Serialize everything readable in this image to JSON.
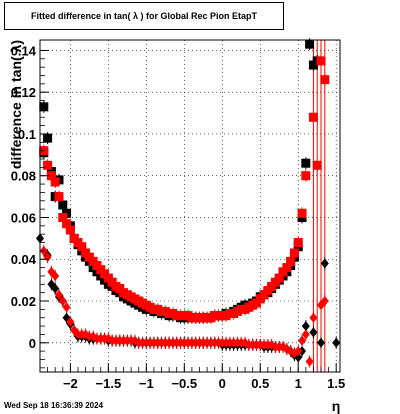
{
  "chart_data": {
    "type": "scatter",
    "title": "Fitted difference in tan( λ ) for Global Rec Pion EtapT",
    "xlabel": "η",
    "ylabel": "difference in tan( λ)",
    "xlim": [
      -2.4,
      1.55
    ],
    "ylim": [
      -0.014,
      0.145
    ],
    "grid": true,
    "x_ticks": [
      -2,
      -1.5,
      -1,
      -0.5,
      0,
      0.5,
      1,
      1.5
    ],
    "x_tick_labels": [
      "−2",
      "−1.5",
      "−1",
      "−0.5",
      "0",
      "0.5",
      "1",
      "1.5"
    ],
    "y_ticks": [
      0,
      0.02,
      0.04,
      0.06,
      0.08,
      0.1,
      0.12,
      0.14
    ],
    "y_tick_labels": [
      "0",
      "0.02",
      "0.04",
      "0.06",
      "0.08",
      "0.1",
      "0.12",
      "0.14"
    ],
    "series": [
      {
        "color": "#000000",
        "marker": "square",
        "points": [
          [
            -2.35,
            0.113
          ],
          [
            -2.35,
            0.091
          ],
          [
            -2.3,
            0.098
          ],
          [
            -2.25,
            0.082
          ],
          [
            -2.2,
            0.07
          ],
          [
            -2.15,
            0.078
          ],
          [
            -2.1,
            0.066
          ],
          [
            -2.05,
            0.062
          ],
          [
            -2.0,
            0.056
          ],
          [
            -1.95,
            0.05
          ],
          [
            -1.9,
            0.047
          ],
          [
            -1.85,
            0.044
          ],
          [
            -1.8,
            0.041
          ],
          [
            -1.75,
            0.039
          ],
          [
            -1.7,
            0.036
          ],
          [
            -1.65,
            0.034
          ],
          [
            -1.6,
            0.032
          ],
          [
            -1.55,
            0.03
          ],
          [
            -1.5,
            0.028
          ],
          [
            -1.45,
            0.027
          ],
          [
            -1.4,
            0.025
          ],
          [
            -1.35,
            0.024
          ],
          [
            -1.3,
            0.022
          ],
          [
            -1.25,
            0.021
          ],
          [
            -1.2,
            0.02
          ],
          [
            -1.15,
            0.019
          ],
          [
            -1.1,
            0.018
          ],
          [
            -1.05,
            0.017
          ],
          [
            -1.0,
            0.016
          ],
          [
            -0.95,
            0.016
          ],
          [
            -0.9,
            0.015
          ],
          [
            -0.85,
            0.015
          ],
          [
            -0.8,
            0.014
          ],
          [
            -0.75,
            0.014
          ],
          [
            -0.7,
            0.013
          ],
          [
            -0.65,
            0.013
          ],
          [
            -0.6,
            0.013
          ],
          [
            -0.55,
            0.012
          ],
          [
            -0.5,
            0.012
          ],
          [
            -0.45,
            0.012
          ],
          [
            -0.4,
            0.012
          ],
          [
            -0.35,
            0.012
          ],
          [
            -0.3,
            0.012
          ],
          [
            -0.25,
            0.012
          ],
          [
            -0.2,
            0.012
          ],
          [
            -0.15,
            0.012
          ],
          [
            -0.1,
            0.013
          ],
          [
            -0.05,
            0.013
          ],
          [
            0.0,
            0.013
          ],
          [
            0.05,
            0.014
          ],
          [
            0.1,
            0.014
          ],
          [
            0.15,
            0.015
          ],
          [
            0.2,
            0.016
          ],
          [
            0.25,
            0.017
          ],
          [
            0.3,
            0.018
          ],
          [
            0.35,
            0.018
          ],
          [
            0.4,
            0.019
          ],
          [
            0.45,
            0.02
          ],
          [
            0.5,
            0.022
          ],
          [
            0.55,
            0.023
          ],
          [
            0.6,
            0.024
          ],
          [
            0.65,
            0.026
          ],
          [
            0.7,
            0.028
          ],
          [
            0.75,
            0.03
          ],
          [
            0.8,
            0.032
          ],
          [
            0.85,
            0.034
          ],
          [
            0.9,
            0.037
          ],
          [
            0.95,
            0.041
          ],
          [
            1.0,
            0.046
          ],
          [
            1.05,
            0.06
          ],
          [
            1.1,
            0.086
          ],
          [
            1.15,
            0.143
          ],
          [
            1.2,
            0.133
          ],
          [
            1.25,
            0.135
          ]
        ]
      },
      {
        "color": "#000000",
        "marker": "diamond",
        "points": [
          [
            -2.4,
            0.05
          ],
          [
            -2.3,
            0.042
          ],
          [
            -2.25,
            0.028
          ],
          [
            -2.2,
            0.026
          ],
          [
            -2.15,
            0.022
          ],
          [
            -2.1,
            0.02
          ],
          [
            -2.05,
            0.012
          ],
          [
            -2.0,
            0.009
          ],
          [
            -1.95,
            0.006
          ],
          [
            -1.9,
            0.003
          ],
          [
            -1.85,
            0.003
          ],
          [
            -1.8,
            0.003
          ],
          [
            -1.75,
            0.002
          ],
          [
            -1.7,
            0.002
          ],
          [
            -1.65,
            0.002
          ],
          [
            -1.6,
            0.002
          ],
          [
            -1.55,
            0.002
          ],
          [
            -1.5,
            0.001
          ],
          [
            -1.45,
            0.001
          ],
          [
            -1.4,
            0.001
          ],
          [
            -1.35,
            0.001
          ],
          [
            -1.3,
            0.001
          ],
          [
            -1.25,
            0.001
          ],
          [
            -1.2,
            0.001
          ],
          [
            -1.15,
            0.0
          ],
          [
            -1.1,
            0.0
          ],
          [
            -1.05,
            0.0
          ],
          [
            -1.0,
            0.0
          ],
          [
            -0.95,
            0.0
          ],
          [
            -0.9,
            0.0
          ],
          [
            -0.85,
            0.0
          ],
          [
            -0.8,
            0.0
          ],
          [
            -0.75,
            0.0
          ],
          [
            -0.7,
            0.0
          ],
          [
            -0.65,
            0.0
          ],
          [
            -0.6,
            0.0
          ],
          [
            -0.55,
            0.0
          ],
          [
            -0.5,
            0.0
          ],
          [
            -0.45,
            0.0
          ],
          [
            -0.4,
            0.0
          ],
          [
            -0.35,
            0.0
          ],
          [
            -0.3,
            0.0
          ],
          [
            -0.25,
            0.0
          ],
          [
            -0.2,
            0.0
          ],
          [
            -0.15,
            0.0
          ],
          [
            -0.1,
            0.0
          ],
          [
            -0.05,
            0.0
          ],
          [
            0.0,
            -0.001
          ],
          [
            0.05,
            -0.001
          ],
          [
            0.1,
            -0.001
          ],
          [
            0.15,
            -0.001
          ],
          [
            0.2,
            -0.001
          ],
          [
            0.25,
            -0.001
          ],
          [
            0.3,
            -0.001
          ],
          [
            0.35,
            -0.001
          ],
          [
            0.4,
            -0.001
          ],
          [
            0.45,
            -0.001
          ],
          [
            0.5,
            -0.001
          ],
          [
            0.55,
            -0.002
          ],
          [
            0.6,
            -0.002
          ],
          [
            0.65,
            -0.002
          ],
          [
            0.7,
            -0.002
          ],
          [
            0.75,
            -0.002
          ],
          [
            0.8,
            -0.002
          ],
          [
            0.85,
            -0.003
          ],
          [
            0.9,
            -0.004
          ],
          [
            0.95,
            -0.006
          ],
          [
            1.0,
            -0.007
          ],
          [
            1.05,
            -0.004
          ],
          [
            1.1,
            0.008
          ],
          [
            1.2,
            0.005
          ],
          [
            1.3,
            0.0
          ],
          [
            1.35,
            0.038
          ],
          [
            1.5,
            0.0
          ]
        ]
      },
      {
        "color": "#ff0000",
        "marker": "square",
        "points": [
          [
            -2.35,
            0.092
          ],
          [
            -2.3,
            0.085
          ],
          [
            -2.25,
            0.08
          ],
          [
            -2.2,
            0.077
          ],
          [
            -2.15,
            0.07
          ],
          [
            -2.1,
            0.06
          ],
          [
            -2.05,
            0.057
          ],
          [
            -2.0,
            0.054
          ],
          [
            -1.95,
            0.05
          ],
          [
            -1.9,
            0.048
          ],
          [
            -1.85,
            0.046
          ],
          [
            -1.8,
            0.043
          ],
          [
            -1.75,
            0.041
          ],
          [
            -1.7,
            0.039
          ],
          [
            -1.65,
            0.037
          ],
          [
            -1.6,
            0.035
          ],
          [
            -1.55,
            0.033
          ],
          [
            -1.5,
            0.031
          ],
          [
            -1.45,
            0.029
          ],
          [
            -1.4,
            0.027
          ],
          [
            -1.35,
            0.026
          ],
          [
            -1.3,
            0.024
          ],
          [
            -1.25,
            0.023
          ],
          [
            -1.2,
            0.022
          ],
          [
            -1.15,
            0.021
          ],
          [
            -1.1,
            0.02
          ],
          [
            -1.05,
            0.019
          ],
          [
            -1.0,
            0.018
          ],
          [
            -0.95,
            0.017
          ],
          [
            -0.9,
            0.016
          ],
          [
            -0.85,
            0.016
          ],
          [
            -0.8,
            0.015
          ],
          [
            -0.75,
            0.015
          ],
          [
            -0.7,
            0.014
          ],
          [
            -0.65,
            0.014
          ],
          [
            -0.6,
            0.013
          ],
          [
            -0.55,
            0.013
          ],
          [
            -0.5,
            0.013
          ],
          [
            -0.45,
            0.013
          ],
          [
            -0.4,
            0.012
          ],
          [
            -0.35,
            0.012
          ],
          [
            -0.3,
            0.012
          ],
          [
            -0.25,
            0.012
          ],
          [
            -0.2,
            0.012
          ],
          [
            -0.15,
            0.012
          ],
          [
            -0.1,
            0.013
          ],
          [
            -0.05,
            0.013
          ],
          [
            0.0,
            0.013
          ],
          [
            0.05,
            0.013
          ],
          [
            0.1,
            0.014
          ],
          [
            0.15,
            0.014
          ],
          [
            0.2,
            0.015
          ],
          [
            0.25,
            0.016
          ],
          [
            0.3,
            0.016
          ],
          [
            0.35,
            0.017
          ],
          [
            0.4,
            0.018
          ],
          [
            0.45,
            0.019
          ],
          [
            0.5,
            0.021
          ],
          [
            0.55,
            0.023
          ],
          [
            0.6,
            0.025
          ],
          [
            0.65,
            0.027
          ],
          [
            0.7,
            0.029
          ],
          [
            0.75,
            0.031
          ],
          [
            0.8,
            0.034
          ],
          [
            0.85,
            0.036
          ],
          [
            0.9,
            0.039
          ],
          [
            0.95,
            0.043
          ],
          [
            1.0,
            0.048
          ],
          [
            1.05,
            0.062
          ],
          [
            1.1,
            0.08
          ],
          [
            1.2,
            0.108
          ],
          [
            1.25,
            0.085
          ],
          [
            1.3,
            0.135
          ],
          [
            1.35,
            0.126
          ]
        ]
      },
      {
        "color": "#ff0000",
        "marker": "diamond",
        "points": [
          [
            -2.35,
            0.044
          ],
          [
            -2.3,
            0.041
          ],
          [
            -2.25,
            0.034
          ],
          [
            -2.2,
            0.032
          ],
          [
            -2.15,
            0.023
          ],
          [
            -2.1,
            0.02
          ],
          [
            -2.05,
            0.017
          ],
          [
            -2.0,
            0.01
          ],
          [
            -1.95,
            0.006
          ],
          [
            -1.9,
            0.004
          ],
          [
            -1.85,
            0.004
          ],
          [
            -1.8,
            0.004
          ],
          [
            -1.75,
            0.003
          ],
          [
            -1.7,
            0.003
          ],
          [
            -1.65,
            0.002
          ],
          [
            -1.6,
            0.002
          ],
          [
            -1.55,
            0.002
          ],
          [
            -1.5,
            0.002
          ],
          [
            -1.45,
            0.001
          ],
          [
            -1.4,
            0.001
          ],
          [
            -1.35,
            0.001
          ],
          [
            -1.3,
            0.001
          ],
          [
            -1.25,
            0.001
          ],
          [
            -1.2,
            0.001
          ],
          [
            -1.15,
            0.001
          ],
          [
            -1.1,
            0.0
          ],
          [
            -1.05,
            0.0
          ],
          [
            -1.0,
            0.0
          ],
          [
            -0.95,
            0.0
          ],
          [
            -0.9,
            0.0
          ],
          [
            -0.85,
            0.0
          ],
          [
            -0.8,
            0.0
          ],
          [
            -0.75,
            0.0
          ],
          [
            -0.7,
            0.0
          ],
          [
            -0.65,
            0.0
          ],
          [
            -0.6,
            0.0
          ],
          [
            -0.55,
            0.0
          ],
          [
            -0.5,
            0.0
          ],
          [
            -0.45,
            0.0
          ],
          [
            -0.4,
            0.0
          ],
          [
            -0.35,
            0.0
          ],
          [
            -0.3,
            0.0
          ],
          [
            -0.25,
            0.0
          ],
          [
            -0.2,
            0.0
          ],
          [
            -0.15,
            0.0
          ],
          [
            -0.1,
            0.0
          ],
          [
            -0.05,
            0.0
          ],
          [
            0.0,
            0.0
          ],
          [
            0.05,
            0.0
          ],
          [
            0.1,
            0.0
          ],
          [
            0.15,
            0.0
          ],
          [
            0.2,
            0.0
          ],
          [
            0.25,
            0.0
          ],
          [
            0.3,
            0.0
          ],
          [
            0.35,
            -0.001
          ],
          [
            0.4,
            -0.001
          ],
          [
            0.45,
            -0.001
          ],
          [
            0.5,
            -0.001
          ],
          [
            0.55,
            -0.001
          ],
          [
            0.6,
            -0.001
          ],
          [
            0.65,
            -0.001
          ],
          [
            0.7,
            -0.002
          ],
          [
            0.75,
            -0.002
          ],
          [
            0.8,
            -0.002
          ],
          [
            0.85,
            -0.003
          ],
          [
            0.9,
            -0.004
          ],
          [
            0.95,
            -0.005
          ],
          [
            1.0,
            -0.004
          ],
          [
            1.05,
            0.001
          ],
          [
            1.1,
            0.004
          ],
          [
            1.15,
            -0.009
          ],
          [
            1.2,
            0.012
          ],
          [
            1.3,
            0.018
          ],
          [
            1.35,
            0.02
          ]
        ]
      }
    ],
    "red_error_bars": [
      {
        "x": 1.2,
        "low": -0.014,
        "high": 0.145
      },
      {
        "x": 1.25,
        "low": -0.014,
        "high": 0.145
      },
      {
        "x": 1.3,
        "low": -0.014,
        "high": 0.145
      },
      {
        "x": 1.35,
        "low": -0.014,
        "high": 0.145
      }
    ]
  },
  "timestamp": "Wed Sep 18 16:36:39 2024"
}
